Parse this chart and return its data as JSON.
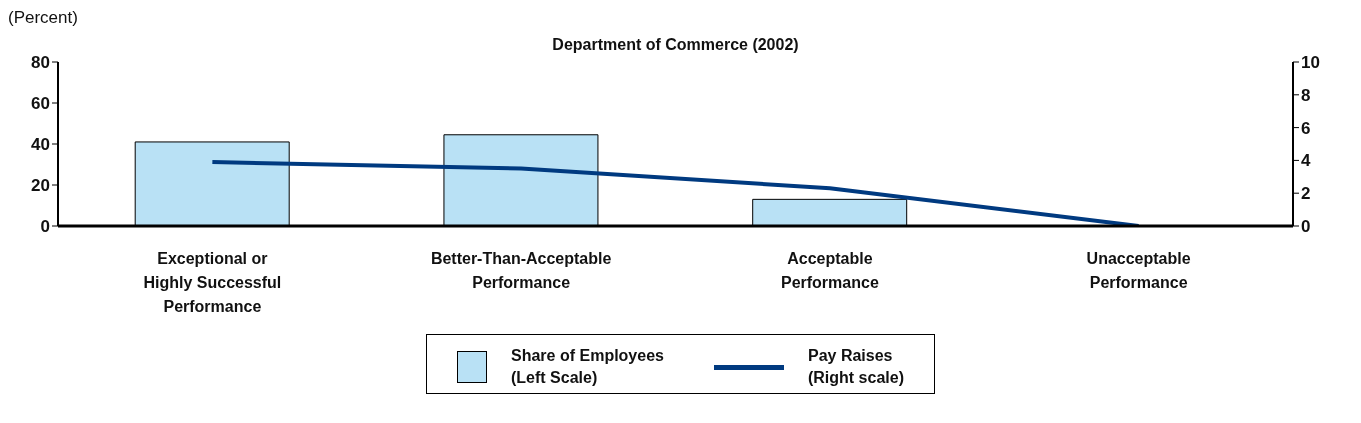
{
  "chart_data": {
    "type": "bar",
    "title": "Department of Commerce (2002)",
    "ylabel": "(Percent)",
    "categories": [
      "Exceptional or Highly Successful Performance",
      "Better-Than-Acceptable Performance",
      "Acceptable Performance",
      "Unacceptable Performance"
    ],
    "series": [
      {
        "name": "Share of Employees (Left Scale)",
        "color": "#b9e1f5",
        "values": [
          41,
          44.5,
          13,
          0
        ]
      },
      {
        "name": "Pay Raises (Right scale)",
        "type": "line",
        "axis": "y2",
        "color": "#003a80",
        "values": [
          3.9,
          3.5,
          2.3,
          0
        ]
      }
    ],
    "ylim": [
      0,
      80
    ],
    "yticks": [
      0,
      20,
      40,
      60,
      80
    ],
    "y2lim": [
      0,
      10
    ],
    "y2ticks": [
      0,
      2,
      4,
      6,
      8,
      10
    ],
    "grid": false,
    "legend": "bottom",
    "marker": "none",
    "line_style": "solid"
  }
}
